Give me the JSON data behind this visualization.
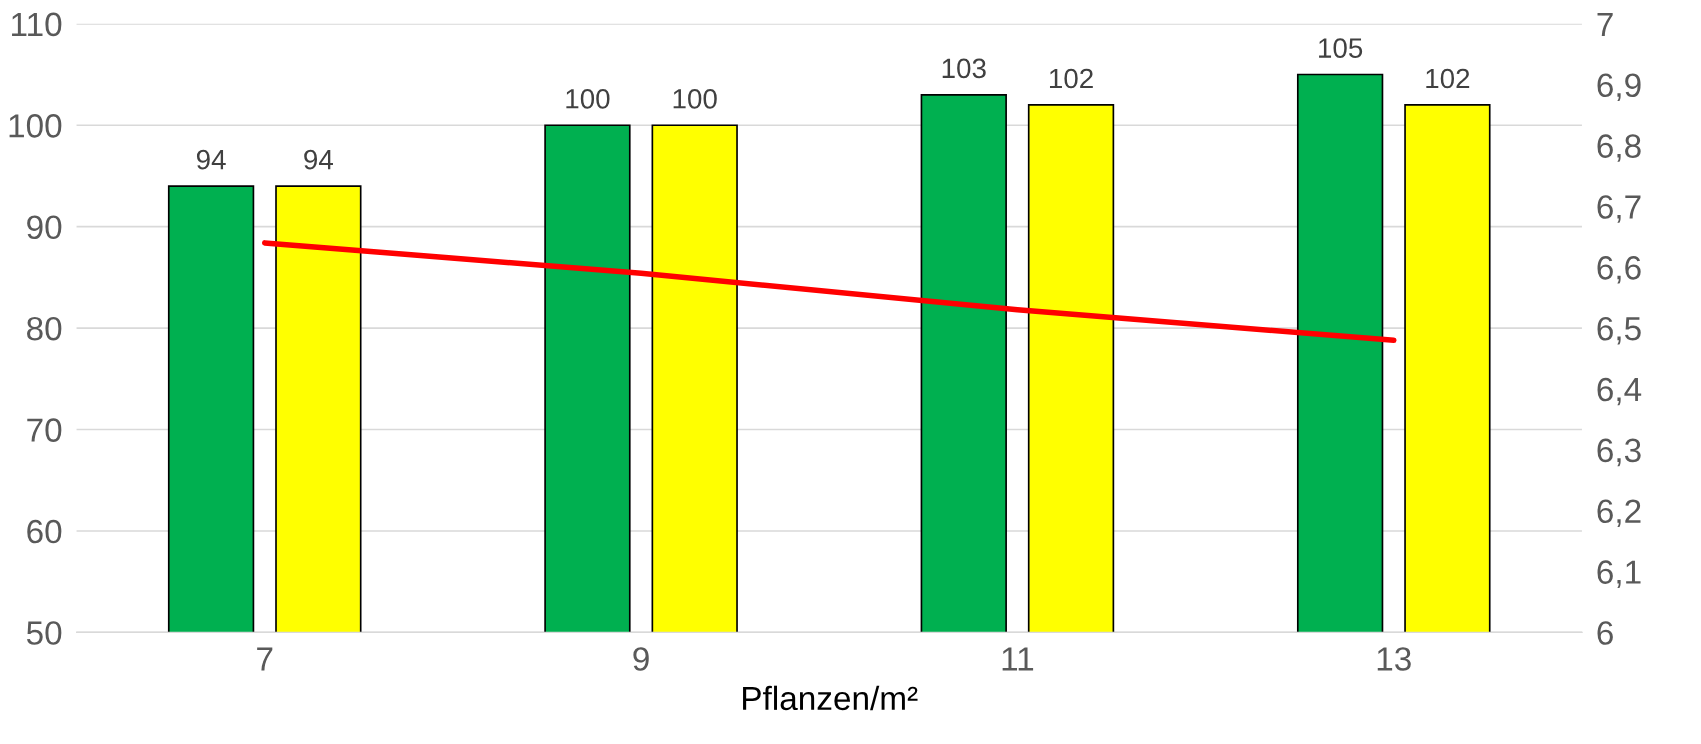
{
  "chart_data": {
    "type": "bar",
    "xlabel": "Pflanzen/m²",
    "categories": [
      "7",
      "9",
      "11",
      "13"
    ],
    "series": [
      {
        "color": "#00b050",
        "values": [
          94,
          100,
          103,
          105
        ],
        "value_labels": [
          "94",
          "100",
          "103",
          "105"
        ]
      },
      {
        "color": "#ffff00",
        "values": [
          94,
          100,
          102,
          102
        ],
        "value_labels": [
          "94",
          "100",
          "102",
          "102"
        ]
      },
      {
        "type": "line",
        "axis": "y2",
        "color": "#ff0000",
        "values": [
          6.64,
          6.59,
          6.53,
          6.48
        ]
      }
    ],
    "grid": "y",
    "legend": false,
    "marker": "none",
    "ylim": [
      50,
      110
    ],
    "yticks": [
      50,
      60,
      70,
      80,
      90,
      100,
      110
    ],
    "y2lim": [
      6,
      7
    ],
    "y2ticks": [
      6,
      {
        "value": 6.1,
        "label": "6,1"
      },
      {
        "value": 6.2,
        "label": "6,2"
      },
      {
        "value": 6.3,
        "label": "6,3"
      },
      {
        "value": 6.4,
        "label": "6,4"
      },
      {
        "value": 6.5,
        "label": "6,5"
      },
      {
        "value": 6.6,
        "label": "6,6"
      },
      {
        "value": 6.7,
        "label": "6,7"
      },
      {
        "value": 6.8,
        "label": "6,8"
      },
      {
        "value": 6.9,
        "label": "6,9"
      },
      7
    ]
  }
}
